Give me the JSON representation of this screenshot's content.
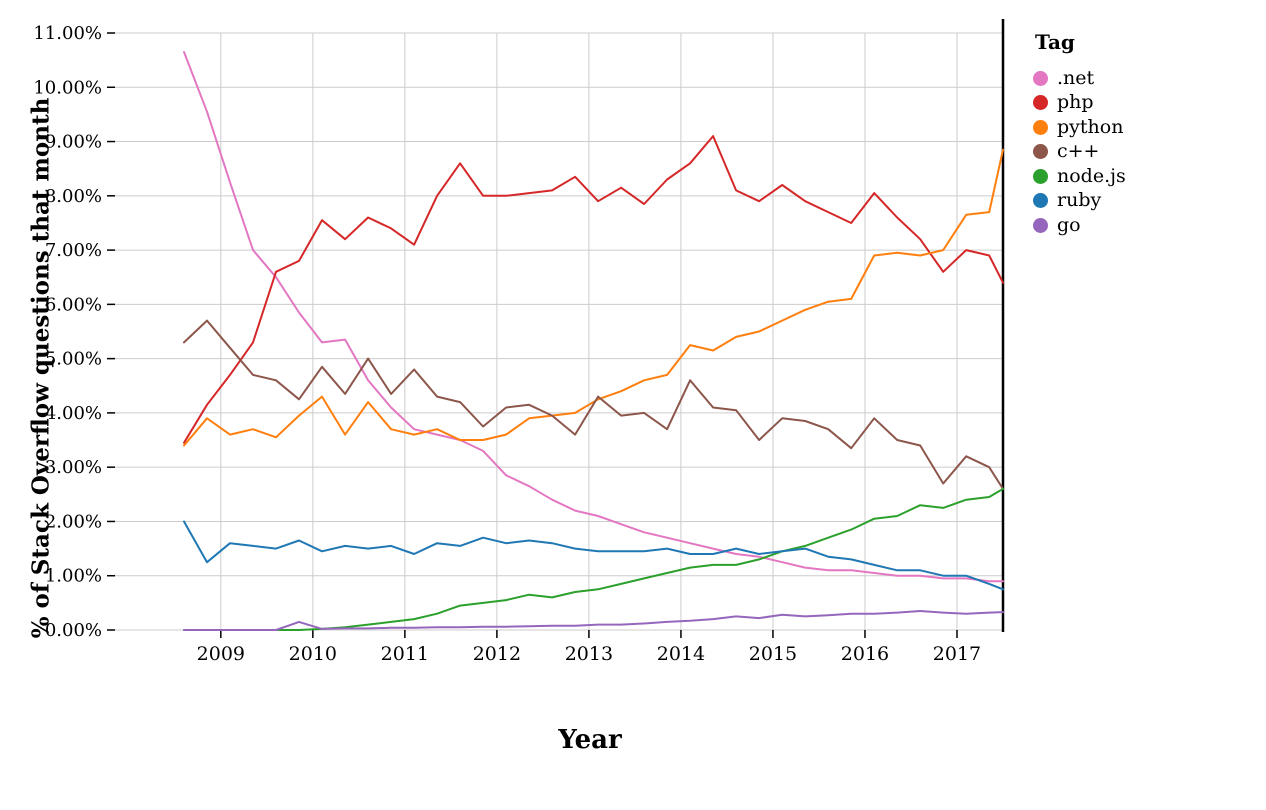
{
  "chart_data": {
    "type": "line",
    "title": "",
    "xlabel": "Year",
    "ylabel": "% of Stack Overflow questions that month",
    "legend_title": "Tag",
    "legend_position": "top-right",
    "grid": true,
    "xlim": [
      2007.85,
      2017.5
    ],
    "ylim": [
      0,
      11
    ],
    "x_ticks": [
      2009,
      2010,
      2011,
      2012,
      2013,
      2014,
      2015,
      2016,
      2017
    ],
    "x_tick_labels": [
      "2009",
      "2010",
      "2011",
      "2012",
      "2013",
      "2014",
      "2015",
      "2016",
      "2017"
    ],
    "y_ticks": [
      0,
      1,
      2,
      3,
      4,
      5,
      6,
      7,
      8,
      9,
      10,
      11
    ],
    "y_tick_labels": [
      "0.00%",
      "1.00%",
      "2.00%",
      "3.00%",
      "4.00%",
      "5.00%",
      "6.00%",
      "7.00%",
      "8.00%",
      "9.00%",
      "10.00%",
      "11.00%"
    ],
    "colors": {
      "grid": "#cccccc",
      "axis": "#000000",
      "background": "#ffffff"
    },
    "x": [
      2008.6,
      2008.85,
      2009.1,
      2009.35,
      2009.6,
      2009.85,
      2010.1,
      2010.35,
      2010.6,
      2010.85,
      2011.1,
      2011.35,
      2011.6,
      2011.85,
      2012.1,
      2012.35,
      2012.6,
      2012.85,
      2013.1,
      2013.35,
      2013.6,
      2013.85,
      2014.1,
      2014.35,
      2014.6,
      2014.85,
      2015.1,
      2015.35,
      2015.6,
      2015.85,
      2016.1,
      2016.35,
      2016.6,
      2016.85,
      2017.1,
      2017.35,
      2017.5
    ],
    "series": [
      {
        "name": ".net",
        "color": "#e377c2",
        "values": [
          10.65,
          9.55,
          8.25,
          7.0,
          6.5,
          5.85,
          5.3,
          5.35,
          4.6,
          4.1,
          3.7,
          3.6,
          3.5,
          3.3,
          2.85,
          2.65,
          2.4,
          2.2,
          2.1,
          1.95,
          1.8,
          1.7,
          1.6,
          1.5,
          1.4,
          1.35,
          1.25,
          1.15,
          1.1,
          1.1,
          1.05,
          1.0,
          1.0,
          0.95,
          0.95,
          0.9,
          0.9
        ]
      },
      {
        "name": "php",
        "color": "#d62728",
        "values": [
          3.45,
          4.15,
          4.7,
          5.3,
          6.6,
          6.8,
          7.55,
          7.2,
          7.6,
          7.4,
          7.1,
          8.0,
          8.6,
          8.0,
          8.0,
          8.05,
          8.1,
          8.35,
          7.9,
          8.15,
          7.85,
          8.3,
          8.6,
          9.1,
          8.1,
          7.9,
          8.2,
          7.9,
          7.7,
          7.5,
          8.05,
          7.6,
          7.2,
          6.6,
          7.0,
          6.9,
          6.4
        ]
      },
      {
        "name": "python",
        "color": "#ff7f0e",
        "values": [
          3.4,
          3.9,
          3.6,
          3.7,
          3.55,
          3.95,
          4.3,
          3.6,
          4.2,
          3.7,
          3.6,
          3.7,
          3.5,
          3.5,
          3.6,
          3.9,
          3.95,
          4.0,
          4.25,
          4.4,
          4.6,
          4.7,
          5.25,
          5.15,
          5.4,
          5.5,
          5.7,
          5.9,
          6.05,
          6.1,
          6.9,
          6.95,
          6.9,
          7.0,
          7.65,
          7.7,
          8.85
        ]
      },
      {
        "name": "c++",
        "color": "#8c564b",
        "values": [
          5.3,
          5.7,
          5.2,
          4.7,
          4.6,
          4.25,
          4.85,
          4.35,
          5.0,
          4.35,
          4.8,
          4.3,
          4.2,
          3.75,
          4.1,
          4.15,
          3.95,
          3.6,
          4.3,
          3.95,
          4.0,
          3.7,
          4.6,
          4.1,
          4.05,
          3.5,
          3.9,
          3.85,
          3.7,
          3.35,
          3.9,
          3.5,
          3.4,
          2.7,
          3.2,
          3.0,
          2.6
        ]
      },
      {
        "name": "node.js",
        "color": "#2ca02c",
        "values": [
          0.0,
          0.0,
          0.0,
          0.0,
          0.0,
          0.0,
          0.02,
          0.05,
          0.1,
          0.15,
          0.2,
          0.3,
          0.45,
          0.5,
          0.55,
          0.65,
          0.6,
          0.7,
          0.75,
          0.85,
          0.95,
          1.05,
          1.15,
          1.2,
          1.2,
          1.3,
          1.45,
          1.55,
          1.7,
          1.85,
          2.05,
          2.1,
          2.3,
          2.25,
          2.4,
          2.45,
          2.6
        ]
      },
      {
        "name": "ruby",
        "color": "#1f77b4",
        "values": [
          2.0,
          1.25,
          1.6,
          1.55,
          1.5,
          1.65,
          1.45,
          1.55,
          1.5,
          1.55,
          1.4,
          1.6,
          1.55,
          1.7,
          1.6,
          1.65,
          1.6,
          1.5,
          1.45,
          1.45,
          1.45,
          1.5,
          1.4,
          1.4,
          1.5,
          1.4,
          1.45,
          1.5,
          1.35,
          1.3,
          1.2,
          1.1,
          1.1,
          1.0,
          1.0,
          0.85,
          0.75
        ]
      },
      {
        "name": "go",
        "color": "#9467bd",
        "values": [
          0.0,
          0.0,
          0.0,
          0.0,
          0.0,
          0.15,
          0.02,
          0.03,
          0.03,
          0.04,
          0.04,
          0.05,
          0.05,
          0.06,
          0.06,
          0.07,
          0.08,
          0.08,
          0.1,
          0.1,
          0.12,
          0.15,
          0.17,
          0.2,
          0.25,
          0.22,
          0.28,
          0.25,
          0.27,
          0.3,
          0.3,
          0.32,
          0.35,
          0.32,
          0.3,
          0.32,
          0.33
        ]
      }
    ]
  }
}
